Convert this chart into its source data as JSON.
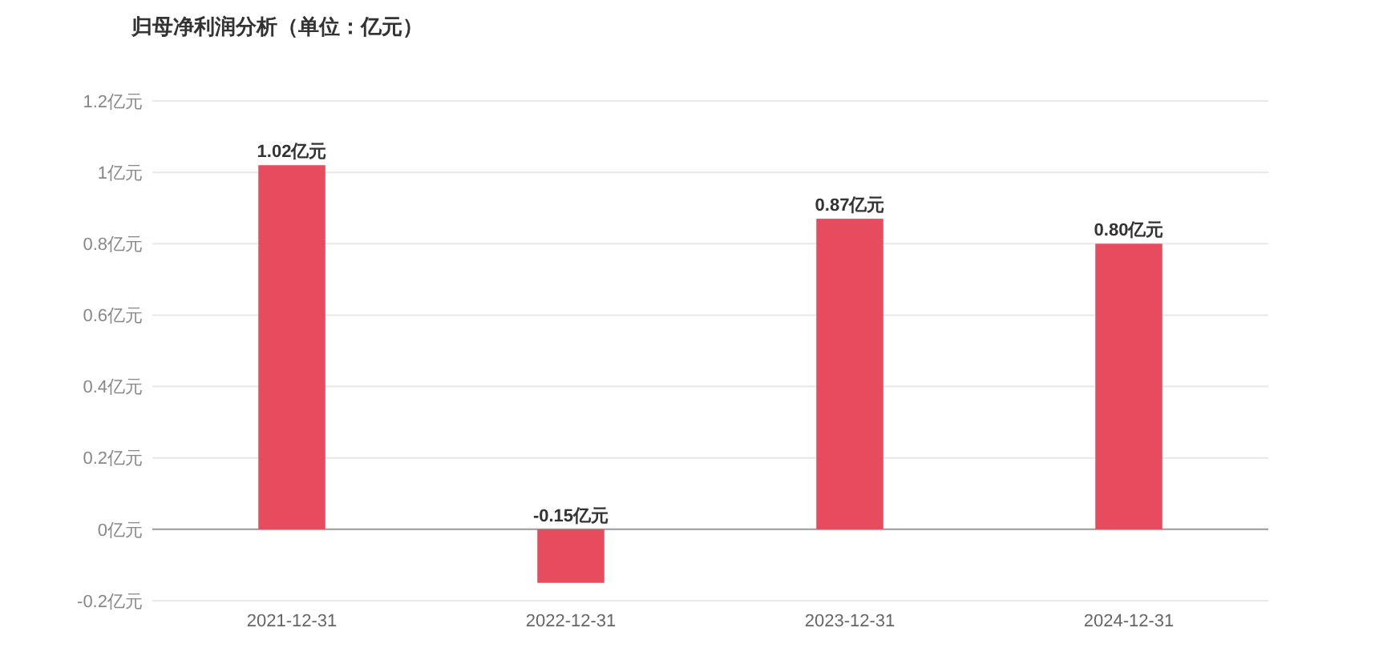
{
  "chart_data": {
    "type": "bar",
    "title": "归母净利润分析（单位：亿元）",
    "categories": [
      "2021-12-31",
      "2022-12-31",
      "2023-12-31",
      "2024-12-31"
    ],
    "values": [
      1.02,
      -0.15,
      0.87,
      0.8
    ],
    "value_labels": [
      "1.02亿元",
      "-0.15亿元",
      "0.87亿元",
      "0.80亿元"
    ],
    "color": "#e64c5e",
    "ylim": [
      -0.2,
      1.2
    ],
    "yticks": [
      {
        "value": -0.2,
        "label": "-0.2亿元"
      },
      {
        "value": 0,
        "label": "0亿元"
      },
      {
        "value": 0.2,
        "label": "0.2亿元"
      },
      {
        "value": 0.4,
        "label": "0.4亿元"
      },
      {
        "value": 0.6,
        "label": "0.6亿元"
      },
      {
        "value": 0.8,
        "label": "0.8亿元"
      },
      {
        "value": 1,
        "label": "1亿元"
      },
      {
        "value": 1.2,
        "label": "1.2亿元"
      }
    ],
    "grid": true
  }
}
